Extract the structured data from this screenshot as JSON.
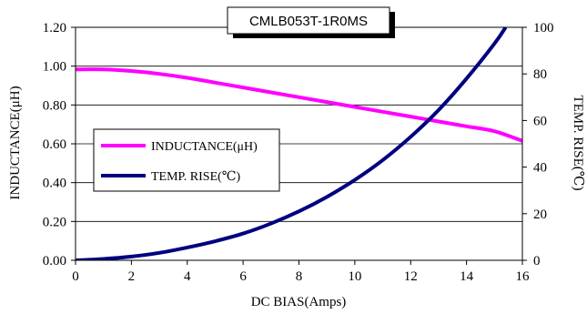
{
  "chart_data": {
    "type": "line",
    "title": "CMLB053T-1R0MS",
    "xlabel": "DC BIAS(Amps)",
    "ylabel_left": "INDUCTANCE(μH)",
    "ylabel_right": "TEMP. RISE(℃)",
    "xlim": [
      0,
      16
    ],
    "ylim_left": [
      0,
      1.2
    ],
    "ylim_right": [
      0,
      100
    ],
    "x_ticks": [
      "0",
      "2",
      "4",
      "6",
      "8",
      "10",
      "12",
      "14",
      "16"
    ],
    "y_left_ticks": [
      "0.00",
      "0.20",
      "0.40",
      "0.60",
      "0.80",
      "1.00",
      "1.20"
    ],
    "y_right_ticks": [
      "0",
      "20",
      "40",
      "60",
      "80",
      "100"
    ],
    "grid": "horizontal",
    "legend_position": "left",
    "series": [
      {
        "name": "INDUCTANCE(μH)",
        "axis": "left",
        "color": "#ff00ff",
        "x": [
          0,
          1,
          2,
          3,
          4,
          5,
          6,
          7,
          8,
          9,
          10,
          11,
          12,
          13,
          14,
          15,
          16
        ],
        "values": [
          0.983,
          0.983,
          0.975,
          0.96,
          0.94,
          0.915,
          0.89,
          0.865,
          0.84,
          0.815,
          0.79,
          0.765,
          0.74,
          0.715,
          0.69,
          0.665,
          0.615
        ]
      },
      {
        "name": "TEMP. RISE(℃)",
        "axis": "right",
        "color": "#000080",
        "x": [
          0,
          1,
          2,
          3,
          4,
          5,
          6,
          7,
          8,
          9,
          10,
          11,
          12,
          13,
          14,
          15,
          15.4
        ],
        "values": [
          0,
          0.6,
          1.6,
          3.2,
          5.5,
          8.2,
          11.5,
          15.8,
          21,
          27.2,
          34.5,
          43,
          53,
          64.5,
          78,
          93,
          100
        ]
      }
    ]
  }
}
